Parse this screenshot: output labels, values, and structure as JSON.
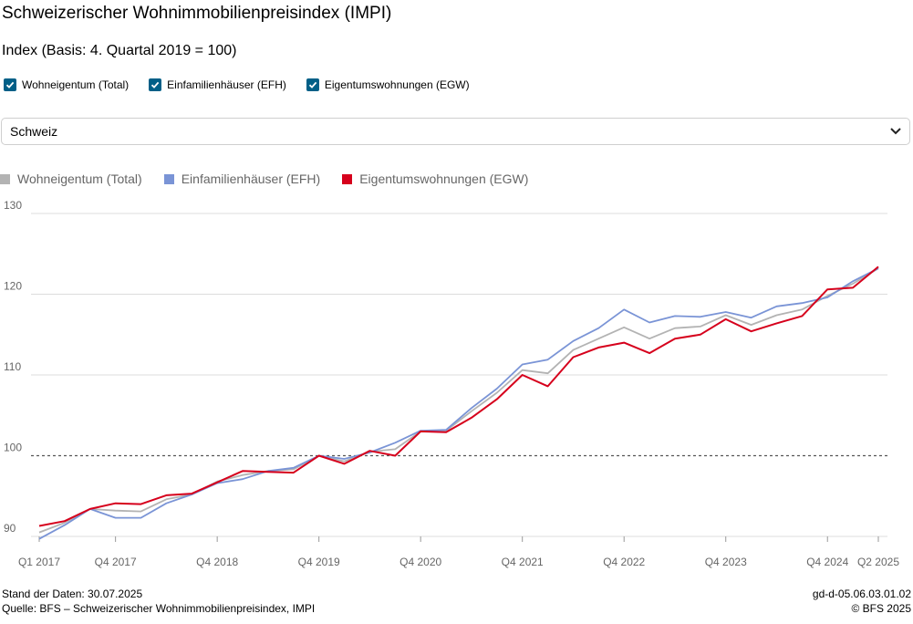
{
  "header": {
    "title": "Schweizerischer Wohnimmobilienpreisindex (IMPI)",
    "subtitle": "Index (Basis: 4. Quartal 2019 = 100)"
  },
  "filters": {
    "checkboxes": [
      {
        "label": "Wohneigentum (Total)",
        "checked": true
      },
      {
        "label": "Einfamilienhäuser (EFH)",
        "checked": true
      },
      {
        "label": "Eigentumswohnungen (EGW)",
        "checked": true
      }
    ],
    "region": {
      "selected": "Schweiz"
    }
  },
  "colors": {
    "total": "#b3b3b3",
    "efh": "#7a94d6",
    "egw": "#d6001c",
    "checkbox": "#005f87",
    "grid": "#dcdcdc",
    "reference": "#555555"
  },
  "chart_data": {
    "type": "line",
    "title": "Schweizerischer Wohnimmobilienpreisindex (IMPI)",
    "ylabel": "Index (Basis: 4. Quartal 2019 = 100)",
    "ylim": [
      90,
      130
    ],
    "yticks": [
      90,
      100,
      110,
      120,
      130
    ],
    "reference_line": 100,
    "legend_position": "top-left",
    "x": [
      "Q1 2017",
      "Q2 2017",
      "Q3 2017",
      "Q4 2017",
      "Q1 2018",
      "Q2 2018",
      "Q3 2018",
      "Q4 2018",
      "Q1 2019",
      "Q2 2019",
      "Q3 2019",
      "Q4 2019",
      "Q1 2020",
      "Q2 2020",
      "Q3 2020",
      "Q4 2020",
      "Q1 2021",
      "Q2 2021",
      "Q3 2021",
      "Q4 2021",
      "Q1 2022",
      "Q2 2022",
      "Q3 2022",
      "Q4 2022",
      "Q1 2023",
      "Q2 2023",
      "Q3 2023",
      "Q4 2023",
      "Q1 2024",
      "Q2 2024",
      "Q3 2024",
      "Q4 2024",
      "Q1 2025",
      "Q2 2025"
    ],
    "xtick_labels": [
      {
        "index": 0,
        "label": "Q1 2017"
      },
      {
        "index": 3,
        "label": "Q4 2017"
      },
      {
        "index": 7,
        "label": "Q4 2018"
      },
      {
        "index": 11,
        "label": "Q4 2019"
      },
      {
        "index": 15,
        "label": "Q4 2020"
      },
      {
        "index": 19,
        "label": "Q4 2021"
      },
      {
        "index": 23,
        "label": "Q4 2022"
      },
      {
        "index": 27,
        "label": "Q4 2023"
      },
      {
        "index": 31,
        "label": "Q4 2024"
      },
      {
        "index": 33,
        "label": "Q2 2025"
      }
    ],
    "series": [
      {
        "key": "total",
        "name": "Wohneigentum (Total)",
        "values": [
          90.5,
          91.7,
          93.4,
          93.2,
          93.1,
          94.6,
          95.2,
          96.8,
          97.6,
          98.1,
          98.3,
          100.0,
          99.3,
          100.5,
          100.8,
          103.0,
          103.1,
          105.5,
          107.8,
          110.6,
          110.2,
          113.1,
          114.5,
          115.9,
          114.5,
          115.8,
          116.0,
          117.4,
          116.2,
          117.4,
          118.1,
          119.8,
          121.3,
          123.2
        ]
      },
      {
        "key": "efh",
        "name": "Einfamilienhäuser (EFH)",
        "values": [
          89.7,
          91.4,
          93.4,
          92.3,
          92.3,
          94.1,
          95.2,
          96.6,
          97.1,
          98.1,
          98.5,
          100.0,
          99.6,
          100.4,
          101.6,
          103.1,
          103.2,
          105.9,
          108.3,
          111.3,
          111.9,
          114.2,
          115.8,
          118.1,
          116.5,
          117.3,
          117.2,
          117.8,
          117.1,
          118.5,
          118.9,
          119.6,
          121.6,
          123.2
        ]
      },
      {
        "key": "egw",
        "name": "Eigentumswohnungen (EGW)",
        "values": [
          91.3,
          91.9,
          93.4,
          94.1,
          94.0,
          95.1,
          95.3,
          96.7,
          98.1,
          98.0,
          97.9,
          100.0,
          99.0,
          100.6,
          100.0,
          103.0,
          102.9,
          104.7,
          107.0,
          110.0,
          108.6,
          112.2,
          113.4,
          114.0,
          112.7,
          114.5,
          115.0,
          116.9,
          115.4,
          116.4,
          117.3,
          120.6,
          120.8,
          123.4
        ]
      }
    ]
  },
  "footer": {
    "data_date": "Stand der Daten: 30.07.2025",
    "source": "Quelle: BFS – Schweizerischer Wohnimmobilienpreisindex, IMPI",
    "code": "gd-d-05.06.03.01.02",
    "copyright": "© BFS 2025"
  }
}
